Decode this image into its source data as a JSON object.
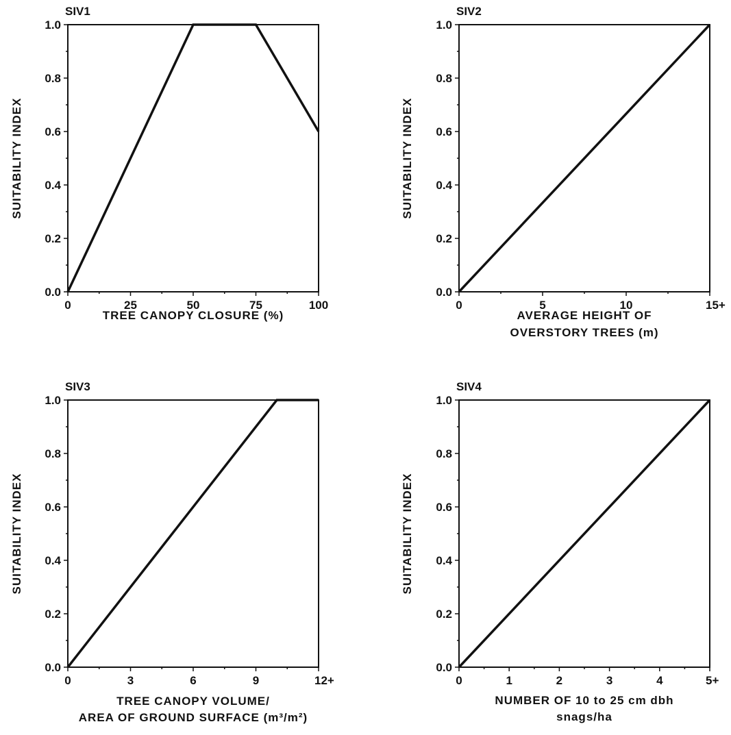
{
  "chart_data": [
    {
      "type": "line",
      "title": "SIV1",
      "xlabel": [
        "TREE CANOPY CLOSURE (%)"
      ],
      "ylabel": "SUITABILITY INDEX",
      "xlim": [
        0,
        100
      ],
      "ylim": [
        0,
        1
      ],
      "x_ticks": [
        0,
        25,
        50,
        75,
        100
      ],
      "x_tick_labels": [
        "0",
        "25",
        "50",
        "75",
        "100"
      ],
      "y_ticks": [
        0,
        0.2,
        0.4,
        0.6,
        0.8,
        1.0
      ],
      "y_tick_labels": [
        "0.0",
        "0.2",
        "0.4",
        "0.6",
        "0.8",
        "1.0"
      ],
      "series": [
        {
          "x": [
            0,
            50,
            75,
            100
          ],
          "y": [
            0,
            1.0,
            1.0,
            0.6
          ]
        }
      ],
      "grid": false,
      "legend": "none"
    },
    {
      "type": "line",
      "title": "SIV2",
      "xlabel": [
        "AVERAGE HEIGHT OF",
        "OVERSTORY TREES (m)"
      ],
      "ylabel": "SUITABILITY INDEX",
      "xlim": [
        0,
        15
      ],
      "ylim": [
        0,
        1
      ],
      "x_ticks": [
        0,
        5,
        10,
        15
      ],
      "x_tick_labels": [
        "0",
        "5",
        "10",
        "15+"
      ],
      "y_ticks": [
        0,
        0.2,
        0.4,
        0.6,
        0.8,
        1.0
      ],
      "y_tick_labels": [
        "0.0",
        "0.2",
        "0.4",
        "0.6",
        "0.8",
        "1.0"
      ],
      "series": [
        {
          "x": [
            0,
            15
          ],
          "y": [
            0,
            1.0
          ]
        }
      ],
      "grid": false,
      "legend": "none"
    },
    {
      "type": "line",
      "title": "SIV3",
      "xlabel": [
        "TREE CANOPY VOLUME/",
        "AREA OF GROUND SURFACE (m³/m²)"
      ],
      "ylabel": "SUITABILITY INDEX",
      "xlim": [
        0,
        12
      ],
      "ylim": [
        0,
        1
      ],
      "x_ticks": [
        0,
        3,
        6,
        9,
        12
      ],
      "x_tick_labels": [
        "0",
        "3",
        "6",
        "9",
        "12+"
      ],
      "y_ticks": [
        0,
        0.2,
        0.4,
        0.6,
        0.8,
        1.0
      ],
      "y_tick_labels": [
        "0.0",
        "0.2",
        "0.4",
        "0.6",
        "0.8",
        "1.0"
      ],
      "series": [
        {
          "x": [
            0,
            10,
            12
          ],
          "y": [
            0,
            1.0,
            1.0
          ]
        }
      ],
      "grid": false,
      "legend": "none"
    },
    {
      "type": "line",
      "title": "SIV4",
      "xlabel": [
        "NUMBER OF 10 to 25 cm dbh",
        "snags/ha"
      ],
      "ylabel": "SUITABILITY INDEX",
      "xlim": [
        0,
        5
      ],
      "ylim": [
        0,
        1
      ],
      "x_ticks": [
        0,
        1,
        2,
        3,
        4,
        5
      ],
      "x_tick_labels": [
        "0",
        "1",
        "2",
        "3",
        "4",
        "5+"
      ],
      "y_ticks": [
        0,
        0.2,
        0.4,
        0.6,
        0.8,
        1.0
      ],
      "y_tick_labels": [
        "0.0",
        "0.2",
        "0.4",
        "0.6",
        "0.8",
        "1.0"
      ],
      "series": [
        {
          "x": [
            0,
            5
          ],
          "y": [
            0,
            1.0
          ]
        }
      ],
      "grid": false,
      "legend": "none"
    }
  ]
}
